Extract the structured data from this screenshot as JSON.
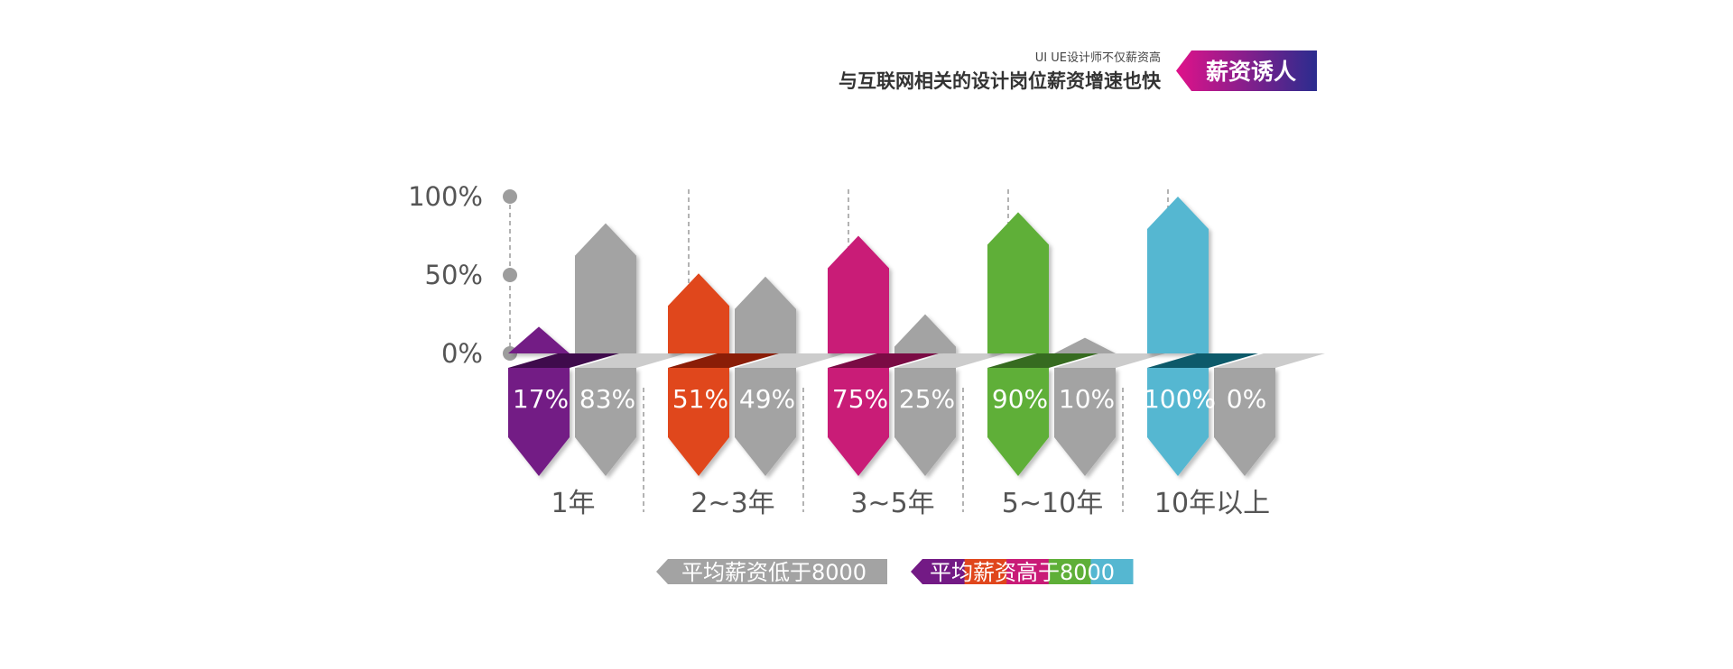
{
  "header": {
    "subtitle": "UI UE设计师不仅薪资高",
    "headline": "与互联网相关的设计岗位薪资增速也快",
    "badge": "薪资诱人"
  },
  "colors": {
    "badge_gradient": [
      "#e0128a",
      "#2a2c8e"
    ],
    "gray": "#a3a3a3",
    "gray_dark": "#8a8a8a",
    "gray_top": "#cccccc",
    "axis_dot": "#9d9d9d",
    "divider": "#9a9a9a",
    "category_colors": [
      "#731a85",
      "#e0461c",
      "#c91b77",
      "#5eaf38",
      "#55b7d1"
    ],
    "category_top_colors": [
      "#3f0b4c",
      "#8a1d07",
      "#7a0b44",
      "#366b20",
      "#0d5a6a"
    ]
  },
  "chart_data": {
    "type": "bar",
    "categories": [
      "1年",
      "2~3年",
      "3~5年",
      "5~10年",
      "10年以上"
    ],
    "series": [
      {
        "values": [
          17,
          51,
          75,
          90,
          100
        ]
      },
      {
        "values": [
          83,
          49,
          25,
          10,
          0
        ]
      }
    ],
    "value_labels": [
      [
        "17%",
        "51%",
        "75%",
        "90%",
        "100%"
      ],
      [
        "83%",
        "49%",
        "25%",
        "10%",
        "0%"
      ]
    ],
    "yticks": [
      "0%",
      "50%",
      "100%"
    ],
    "ylim": [
      0,
      100
    ],
    "legend": {
      "position": "bottom-center",
      "items": [
        "平均薪资低于8000",
        "平均薪资高于8000"
      ]
    }
  }
}
